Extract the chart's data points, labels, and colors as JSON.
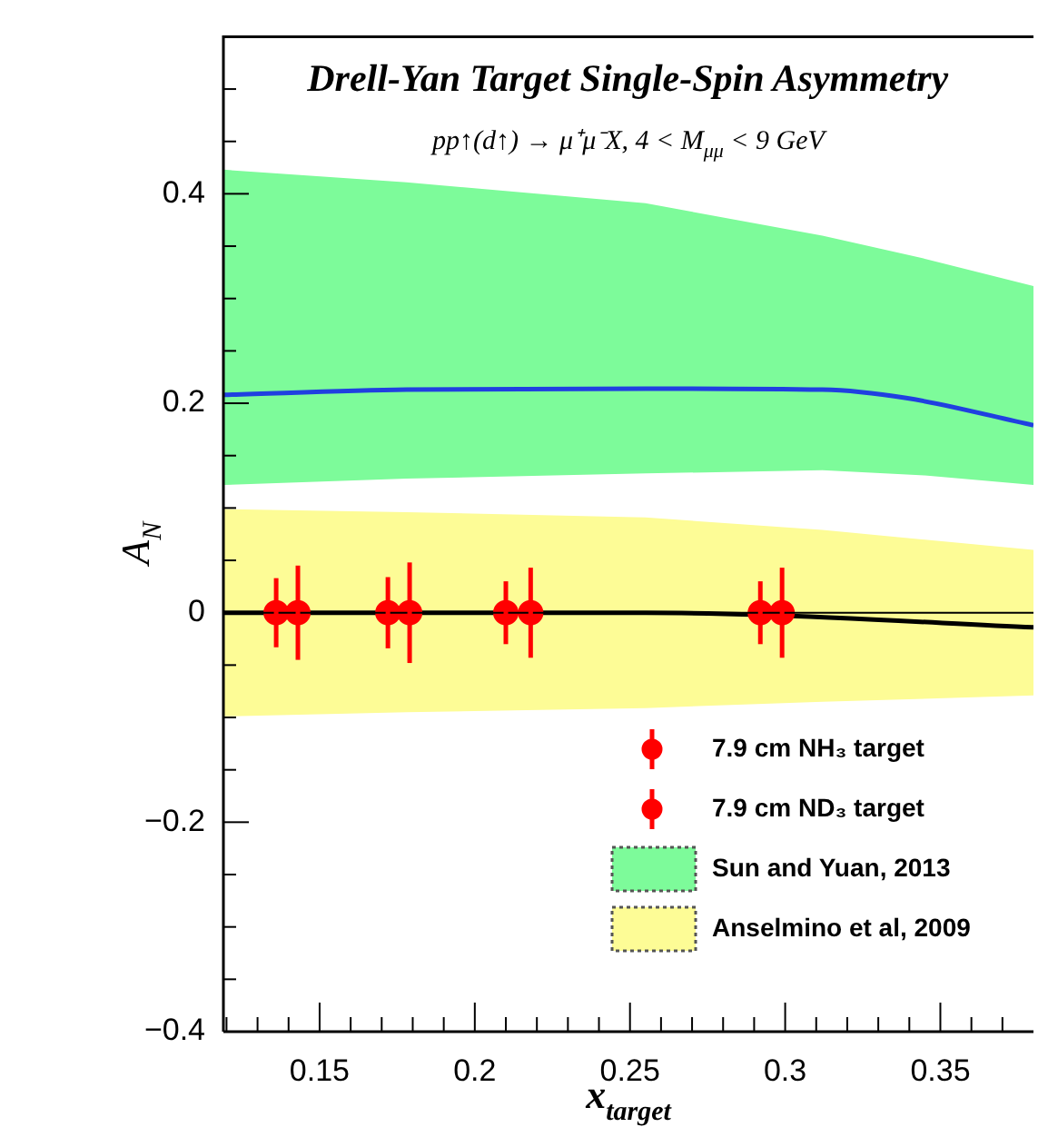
{
  "chart_data": {
    "type": "scatter",
    "title": "Drell-Yan Target Single-Spin Asymmetry",
    "subtitle": "pp↑(d↑) → μ⁺μ⁻X, 4 < M$_{μμ}$ < 9 GeV",
    "xlabel": "x$_{target}$",
    "ylabel": "A$_{N}$",
    "xlim": [
      0.119,
      0.38
    ],
    "ylim": [
      -0.4,
      0.55
    ],
    "xticks": [
      {
        "value": 0.12,
        "label": null
      },
      {
        "value": 0.13,
        "label": null
      },
      {
        "value": 0.14,
        "label": null
      },
      0.15,
      {
        "value": 0.16,
        "label": null
      },
      {
        "value": 0.17,
        "label": null
      },
      {
        "value": 0.18,
        "label": null
      },
      {
        "value": 0.19,
        "label": null
      },
      0.2,
      {
        "value": 0.21,
        "label": null
      },
      {
        "value": 0.22,
        "label": null
      },
      {
        "value": 0.23,
        "label": null
      },
      {
        "value": 0.24,
        "label": null
      },
      0.25,
      {
        "value": 0.26,
        "label": null
      },
      {
        "value": 0.27,
        "label": null
      },
      {
        "value": 0.28,
        "label": null
      },
      {
        "value": 0.29,
        "label": null
      },
      0.3,
      {
        "value": 0.31,
        "label": null
      },
      {
        "value": 0.32,
        "label": null
      },
      {
        "value": 0.33,
        "label": null
      },
      {
        "value": 0.34,
        "label": null
      },
      0.35,
      {
        "value": 0.36,
        "label": null
      },
      {
        "value": 0.37,
        "label": null
      }
    ],
    "yticks": [
      {
        "value": -0.4,
        "label": "−0.4"
      },
      {
        "value": -0.35,
        "label": null
      },
      {
        "value": -0.3,
        "label": null
      },
      {
        "value": -0.25,
        "label": null
      },
      {
        "value": -0.2,
        "label": "−0.2"
      },
      {
        "value": -0.15,
        "label": null
      },
      {
        "value": -0.1,
        "label": null
      },
      {
        "value": -0.05,
        "label": null
      },
      0,
      {
        "value": 0.05,
        "label": null
      },
      {
        "value": 0.1,
        "label": null
      },
      {
        "value": 0.15,
        "label": null
      },
      0.2,
      {
        "value": 0.25,
        "label": null
      },
      {
        "value": 0.3,
        "label": null
      },
      {
        "value": 0.35,
        "label": null
      },
      0.4,
      {
        "value": 0.45,
        "label": null
      },
      {
        "value": 0.5,
        "label": null
      }
    ],
    "grid": false,
    "legend": "bottom right",
    "ref_lines": [
      {
        "axis": "y",
        "value": 0,
        "color": "#000000"
      }
    ],
    "series": [
      {
        "name": "7.9 cm NH₃ target",
        "color": "#ff0000",
        "marker": "circle",
        "x": [
          0.136,
          0.172,
          0.21,
          0.292
        ],
        "values": [
          0,
          0,
          0,
          0
        ],
        "errors": [
          0.033,
          0.034,
          0.03,
          0.03
        ]
      },
      {
        "name": "7.9 cm ND₃ target",
        "color": "#ff0000",
        "marker": "circle",
        "x": [
          0.143,
          0.179,
          0.218,
          0.299
        ],
        "values": [
          0,
          0,
          0,
          0
        ],
        "errors": [
          0.045,
          0.048,
          0.043,
          0.043
        ]
      },
      {
        "type": "line",
        "color": "#2040e0",
        "x": [
          0.119,
          0.178,
          0.255,
          0.312,
          0.339,
          0.38
        ],
        "values": [
          0.208,
          0.213,
          0.214,
          0.213,
          0.205,
          0.179
        ]
      },
      {
        "type": "line",
        "color": "#000000",
        "x": [
          0.119,
          0.178,
          0.255,
          0.292,
          0.38
        ],
        "values": [
          0,
          0,
          0,
          -0.002,
          -0.014
        ]
      },
      {
        "type": "area",
        "name": "Sun and Yuan, 2013",
        "color": "#7dfb9a",
        "line_style": "dotted",
        "x": [
          0.119,
          0.178,
          0.255,
          0.312,
          0.345,
          0.38
        ],
        "lower": [
          0.122,
          0.128,
          0.133,
          0.136,
          0.131,
          0.122
        ],
        "upper": [
          0.423,
          0.411,
          0.391,
          0.36,
          0.338,
          0.312
        ],
        "values": [
          null,
          null,
          null,
          null,
          null,
          null
        ]
      },
      {
        "type": "area",
        "name": "Anselmino et al, 2009",
        "color": "#fdfc96",
        "line_style": "dotted",
        "x": [
          0.119,
          0.178,
          0.255,
          0.312,
          0.38
        ],
        "lower": [
          -0.099,
          -0.095,
          -0.091,
          -0.085,
          -0.079
        ],
        "upper": [
          0.099,
          0.096,
          0.091,
          0.079,
          0.06
        ],
        "values": [
          null,
          null,
          null,
          null,
          null
        ]
      }
    ]
  }
}
